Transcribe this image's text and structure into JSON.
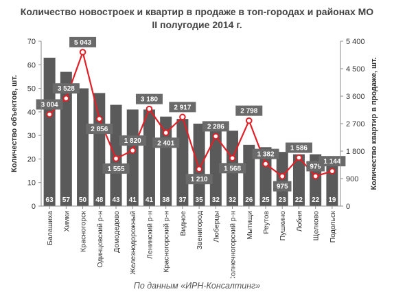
{
  "caption": "По данным «ИРН-Консалтинг»",
  "colors": {
    "bars": "#5a5a5a",
    "line": "#e01f26",
    "marker_fill": "#ffffff",
    "label_box": "#6a6a6a",
    "grid": "#d0d0d0"
  },
  "chart_data": {
    "type": "bar",
    "title": "Количество новостроек и квартир в продаже в топ-городах и районах МО",
    "subtitle": "II полугодие 2014 г.",
    "ylabel": "Количество объектов, шт.",
    "y2label": "Количество квартир в продаже, шт.",
    "ylim": [
      0,
      70
    ],
    "y2lim": [
      0,
      5400
    ],
    "yticks": [
      0,
      10,
      20,
      30,
      40,
      50,
      60,
      70
    ],
    "y2ticks": [
      0,
      900,
      1800,
      2700,
      3600,
      4500,
      5400
    ],
    "y2tick_labels": [
      "0",
      "900",
      "1 800",
      "2 700",
      "3 600",
      "4 500",
      "5 400"
    ],
    "grid": false,
    "categories": [
      "Балашиха",
      "Химки",
      "Красногорск",
      "Одинцовский р-н",
      "Домодедово",
      "Железнодорожный",
      "Ленинский р-н",
      "Красногорский р-н",
      "Видное",
      "Звенигород",
      "Люберцы",
      "Солнечногорский р-н",
      "Мытищи",
      "Реутов",
      "Пушкино",
      "Лобня",
      "Щелково",
      "Подольск"
    ],
    "series": [
      {
        "type": "bar",
        "axis": "left",
        "values": [
          63,
          57,
          50,
          48,
          43,
          41,
          41,
          38,
          37,
          35,
          32,
          32,
          26,
          25,
          23,
          22,
          22,
          19
        ],
        "labels": [
          "63",
          "57",
          "50",
          "48",
          "43",
          "41",
          "41",
          "38",
          "37",
          "35",
          "32",
          "32",
          "26",
          "25",
          "23",
          "22",
          "22",
          "19"
        ]
      },
      {
        "type": "line",
        "axis": "right",
        "values": [
          3004,
          3528,
          5043,
          2856,
          1555,
          1820,
          3180,
          2401,
          2917,
          1210,
          2286,
          1568,
          2798,
          1382,
          975,
          1586,
          979,
          1144
        ],
        "labels": [
          "3 004",
          "3 528",
          "5 043",
          "2 856",
          "1 555",
          "1 820",
          "3 180",
          "2 401",
          "2 917",
          "1 210",
          "2 286",
          "1 568",
          "2 798",
          "1 382",
          "975",
          "1 586",
          "979",
          "1 144"
        ]
      }
    ]
  }
}
